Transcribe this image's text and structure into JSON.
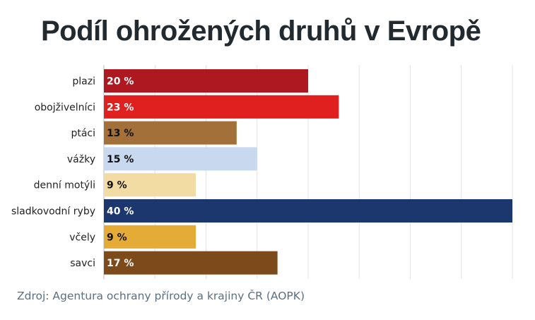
{
  "chart_data": {
    "type": "bar",
    "orientation": "horizontal",
    "title": "Podíl ohrožených druhů v Evropě",
    "categories": [
      "plazi",
      "obojživelníci",
      "ptáci",
      "vážky",
      "denní motýli",
      "sladkovodní ryby",
      "včely",
      "savci"
    ],
    "values": [
      20,
      23,
      13,
      15,
      9,
      40,
      9,
      17
    ],
    "value_labels": [
      "20 %",
      "23 %",
      "13 %",
      "15 %",
      "9 %",
      "40 %",
      "9 %",
      "17 %"
    ],
    "colors": [
      "#ae1820",
      "#e0201f",
      "#a3703a",
      "#c8d8ef",
      "#f3dca4",
      "#1c376d",
      "#e4ac36",
      "#7d4a1b"
    ],
    "label_colors": [
      "#ffffff",
      "#ffffff",
      "#111111",
      "#111111",
      "#111111",
      "#ffffff",
      "#111111",
      "#ffffff"
    ],
    "xlim": [
      0,
      40
    ],
    "grid": true,
    "xlabel": "",
    "ylabel": ""
  },
  "source": "Zdroj: Agentura ochrany přírody a krajiny ČR (AOPK)"
}
